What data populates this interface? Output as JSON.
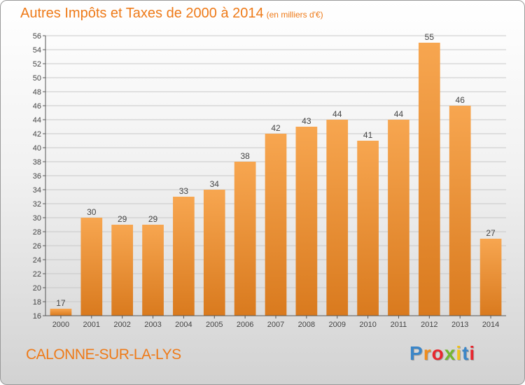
{
  "header": {
    "title": "Autres Impôts et Taxes de 2000 à 2014",
    "unit": "(en milliers d'€)"
  },
  "footer": {
    "town": "CALONNE-SUR-LA-LYS",
    "logo_letters": [
      "P",
      "r",
      "o",
      "x",
      "i",
      "t",
      "i"
    ],
    "logo_colors": [
      "#3b86c8",
      "#f08c1c",
      "#e8262e",
      "#74b72e",
      "#f2c21a",
      "#3b86c8",
      "#e8262e"
    ]
  },
  "colors": {
    "title": "#ee7a18",
    "bar_light": "#f7a650",
    "bar_dark": "#d97a1e",
    "grid": "#c8c8c8"
  },
  "chart_data": {
    "type": "bar",
    "categories": [
      "2000",
      "2001",
      "2002",
      "2003",
      "2004",
      "2005",
      "2006",
      "2007",
      "2008",
      "2009",
      "2010",
      "2011",
      "2012",
      "2013",
      "2014"
    ],
    "values": [
      17,
      30,
      29,
      29,
      33,
      34,
      38,
      42,
      43,
      44,
      41,
      44,
      55,
      46,
      27
    ],
    "title": "Autres Impôts et Taxes de 2000 à 2014",
    "xlabel": "",
    "ylabel": "",
    "ylim": [
      16,
      56
    ],
    "ytick_step": 2,
    "grid": true
  }
}
